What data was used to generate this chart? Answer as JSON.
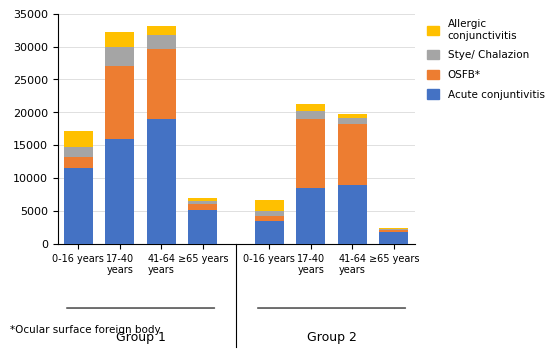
{
  "categories_g1": [
    "0-16 years",
    "17-40\nyears",
    "41-64\nyears",
    "≥65 years"
  ],
  "categories_g2": [
    "0-16 years",
    "17-40\nyears",
    "41-64\nyears",
    "≥65 years"
  ],
  "acute_conjunctivitis": [
    11500,
    15900,
    19000,
    5100,
    3500,
    8500,
    9000,
    1700
  ],
  "osfb": [
    1700,
    11200,
    10700,
    900,
    700,
    10500,
    9200,
    400
  ],
  "stye_chalazion": [
    1500,
    2800,
    2000,
    500,
    700,
    1200,
    900,
    200
  ],
  "allergic_conjunctivitis": [
    2500,
    2400,
    1500,
    500,
    1700,
    1000,
    700,
    100
  ],
  "colors": {
    "acute_conjunctivitis": "#4472C4",
    "osfb": "#ED7D31",
    "stye_chalazion": "#A5A5A5",
    "allergic_conjunctivitis": "#FFC000"
  },
  "ylim": [
    0,
    35000
  ],
  "yticks": [
    0,
    5000,
    10000,
    15000,
    20000,
    25000,
    30000,
    35000
  ],
  "footnote": "*Ocular surface foreign body",
  "group1_label": "Group 1",
  "group2_label": "Group 2"
}
